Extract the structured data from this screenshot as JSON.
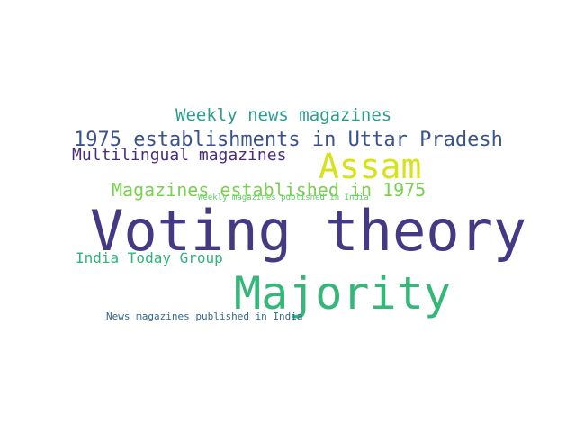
{
  "words": [
    {
      "text": "Weekly news magazines",
      "color": "#2a9d8f"
    },
    {
      "text": "1975 establishments in Uttar Pradesh",
      "color": "#3b528b"
    },
    {
      "text": "Multilingual magazines",
      "color": "#472d7b"
    },
    {
      "text": "Assam",
      "color": "#d8e219"
    },
    {
      "text": "Magazines established in 1975",
      "color": "#7ad151"
    },
    {
      "text": "Weekly magazines published in India",
      "color": "#5ec962"
    },
    {
      "text": "Voting theory",
      "color": "#443983"
    },
    {
      "text": "India Today Group",
      "color": "#2fb47c"
    },
    {
      "text": "Majority",
      "color": "#35b779"
    },
    {
      "text": "News magazines published in India",
      "color": "#31688e"
    }
  ]
}
